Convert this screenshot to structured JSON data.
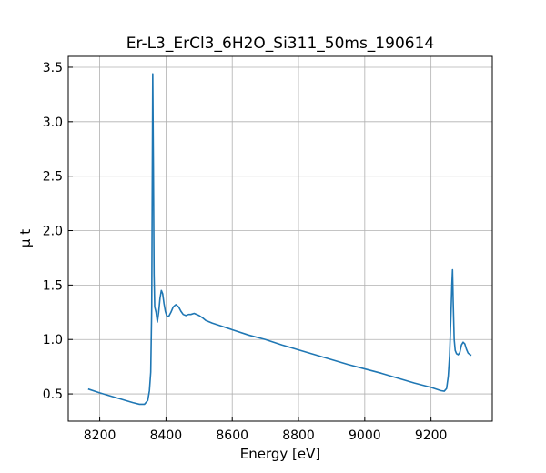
{
  "chart_data": {
    "type": "line",
    "title": "Er-L3_ErCl3_6H2O_Si311_50ms_190614",
    "xlabel": "Energy [eV]",
    "ylabel": "μ t",
    "xlim": [
      8105,
      9385
    ],
    "ylim": [
      0.25,
      3.6
    ],
    "grid": true,
    "x_ticks": [
      8200,
      8400,
      8600,
      8800,
      9000,
      9200
    ],
    "y_ticks": [
      0.5,
      1.0,
      1.5,
      2.0,
      2.5,
      3.0,
      3.5
    ],
    "x_tick_labels": [
      "8200",
      "8400",
      "8600",
      "8800",
      "9000",
      "9200"
    ],
    "y_tick_labels": [
      "0.5",
      "1.0",
      "1.5",
      "2.0",
      "2.5",
      "3.0",
      "3.5"
    ],
    "series": [
      {
        "color": "#1f77b4",
        "x": [
          8165,
          8200,
          8250,
          8300,
          8320,
          8335,
          8345,
          8350,
          8354,
          8357,
          8360,
          8362,
          8364,
          8366,
          8370,
          8374,
          8378,
          8382,
          8386,
          8390,
          8394,
          8398,
          8402,
          8408,
          8415,
          8422,
          8430,
          8438,
          8445,
          8452,
          8460,
          8468,
          8475,
          8485,
          8500,
          8510,
          8520,
          8540,
          8560,
          8600,
          8650,
          8700,
          8750,
          8800,
          8850,
          8900,
          8950,
          9000,
          9050,
          9100,
          9150,
          9200,
          9230,
          9240,
          9247,
          9252,
          9256,
          9260,
          9263,
          9265,
          9267,
          9270,
          9273,
          9277,
          9282,
          9287,
          9292,
          9297,
          9302,
          9307,
          9312,
          9318,
          9322
        ],
        "y": [
          0.545,
          0.51,
          0.465,
          0.42,
          0.405,
          0.405,
          0.44,
          0.53,
          0.7,
          1.3,
          3.44,
          2.6,
          1.6,
          1.3,
          1.25,
          1.16,
          1.25,
          1.38,
          1.45,
          1.42,
          1.33,
          1.26,
          1.22,
          1.21,
          1.25,
          1.3,
          1.32,
          1.3,
          1.26,
          1.23,
          1.22,
          1.23,
          1.23,
          1.24,
          1.22,
          1.2,
          1.175,
          1.15,
          1.13,
          1.09,
          1.04,
          1.0,
          0.95,
          0.905,
          0.86,
          0.815,
          0.77,
          0.73,
          0.69,
          0.645,
          0.6,
          0.56,
          0.53,
          0.525,
          0.55,
          0.66,
          0.85,
          1.2,
          1.5,
          1.64,
          1.35,
          1.0,
          0.9,
          0.87,
          0.86,
          0.88,
          0.95,
          0.975,
          0.96,
          0.91,
          0.875,
          0.86,
          0.855
        ]
      }
    ]
  }
}
